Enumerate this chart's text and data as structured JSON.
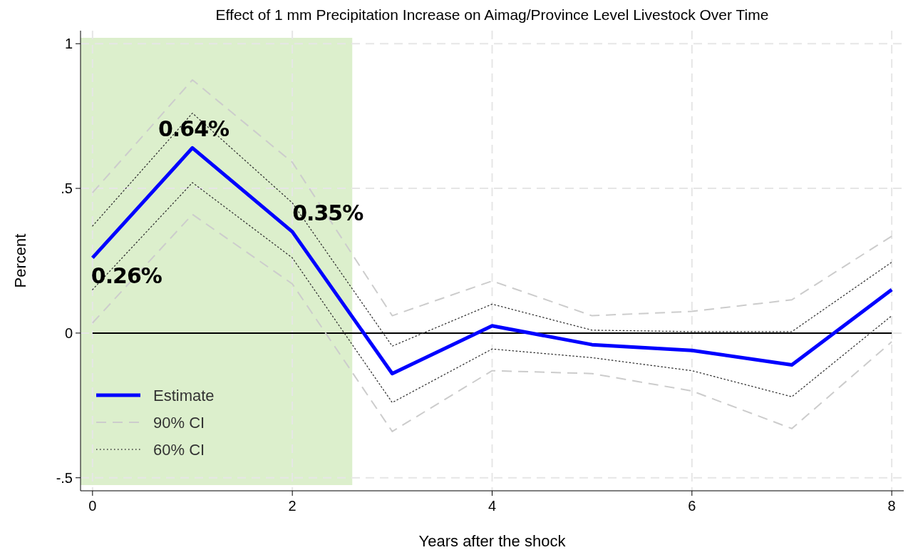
{
  "chart_data": {
    "type": "line",
    "title": "Effect of 1 mm Precipitation Increase on Aimag/Province Level Livestock Over Time",
    "xlabel": "Years after the shock",
    "ylabel": "Percent",
    "x": [
      0,
      1,
      2,
      3,
      4,
      5,
      6,
      7,
      8
    ],
    "series": [
      {
        "name": "Estimate",
        "color": "#0000ff",
        "line_style": "solid",
        "values": [
          0.26,
          0.64,
          0.35,
          -0.14,
          0.025,
          -0.04,
          -0.06,
          -0.11,
          0.15
        ]
      },
      {
        "name": "90% CI",
        "color": "#cccccc",
        "line_style": "dashed",
        "values": [
          0.485,
          0.875,
          0.59,
          0.06,
          0.18,
          0.06,
          0.075,
          0.115,
          0.335
        ]
      },
      {
        "color": "#cccccc",
        "line_style": "dashed",
        "values": [
          0.035,
          0.41,
          0.17,
          -0.34,
          -0.13,
          -0.14,
          -0.2,
          -0.33,
          -0.03
        ]
      },
      {
        "name": "60% CI",
        "color": "#333333",
        "line_style": "dotted",
        "values": [
          0.37,
          0.76,
          0.45,
          -0.045,
          0.1,
          0.01,
          0.005,
          0.005,
          0.245
        ]
      },
      {
        "color": "#333333",
        "line_style": "dotted",
        "values": [
          0.15,
          0.52,
          0.26,
          -0.24,
          -0.055,
          -0.085,
          -0.13,
          -0.22,
          0.06
        ]
      }
    ],
    "xlim": [
      -0.12,
      8.12
    ],
    "ylim": [
      -0.545,
      1.045
    ],
    "xticks": [
      0,
      2,
      4,
      6,
      8
    ],
    "yticks": [
      {
        "value": -0.5,
        "label": "-.5"
      },
      0,
      {
        "value": 0.5,
        "label": ".5"
      },
      1
    ],
    "grid": true,
    "legend": "bottom left",
    "ref_lines": [
      {
        "axis": "y",
        "value": 0,
        "color": "#000000"
      }
    ],
    "bands": [
      {
        "axis": "x",
        "from": -0.12,
        "to": 2.6,
        "color": "#dcefcc"
      }
    ],
    "annotations": [
      {
        "text": "0.26%",
        "x": 0,
        "y": 0.26
      },
      {
        "text": "0.64%",
        "x": 1,
        "y": 0.64
      },
      {
        "text": "0.35%",
        "x": 2,
        "y": 0.35
      }
    ]
  }
}
